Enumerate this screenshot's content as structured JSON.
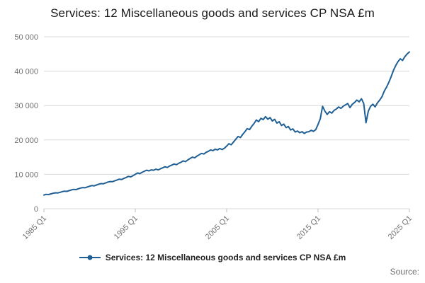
{
  "header": {
    "title": "Services: 12 Miscellaneous goods and services CP NSA £m"
  },
  "footer": {
    "source_label": "Source:"
  },
  "colors": {
    "line": "#206095",
    "grid": "#d9d9d9",
    "axis_text": "#707071",
    "tick": "#bbbbbb",
    "title_text": "#1a1a1a"
  },
  "chart_data": {
    "type": "line",
    "title": "Services: 12 Miscellaneous goods and services CP NSA £m",
    "xlabel": "",
    "ylabel": "",
    "x_unit": "quarter",
    "x_range": [
      "1985 Q1",
      "2025 Q1"
    ],
    "x_tick_labels": [
      "1985 Q1",
      "1995 Q1",
      "2005 Q1",
      "2015 Q1",
      "2025 Q1"
    ],
    "x_tick_indices": [
      0,
      40,
      80,
      120,
      160
    ],
    "y_ticks": [
      0,
      10000,
      20000,
      30000,
      40000,
      50000
    ],
    "y_tick_labels": [
      "0",
      "10 000",
      "20 000",
      "30 000",
      "40 000",
      "50 000"
    ],
    "ylim": [
      0,
      50000
    ],
    "grid": "horizontal",
    "legend_position": "bottom",
    "series": [
      {
        "name": "Services: 12 Miscellaneous goods and services CP NSA £m",
        "color": "#206095",
        "values": [
          4000,
          4180,
          4120,
          4300,
          4480,
          4620,
          4560,
          4750,
          4950,
          5100,
          5050,
          5250,
          5450,
          5620,
          5560,
          5780,
          6000,
          6150,
          6100,
          6320,
          6550,
          6720,
          6650,
          6900,
          7150,
          7300,
          7250,
          7500,
          7750,
          7900,
          7850,
          8100,
          8350,
          8600,
          8500,
          8800,
          9100,
          9400,
          9250,
          9600,
          10000,
          10400,
          10200,
          10600,
          10900,
          11200,
          11000,
          11300,
          11200,
          11500,
          11300,
          11600,
          11900,
          12200,
          12000,
          12400,
          12700,
          13000,
          12800,
          13200,
          13500,
          13900,
          13700,
          14200,
          14600,
          15000,
          14800,
          15300,
          15700,
          16100,
          15900,
          16400,
          16700,
          17100,
          16900,
          17300,
          17100,
          17500,
          17200,
          17600,
          18200,
          18900,
          18600,
          19400,
          20200,
          21000,
          20700,
          21600,
          22400,
          23300,
          23000,
          24000,
          24800,
          25800,
          25300,
          26300,
          25900,
          26800,
          26000,
          26500,
          25500,
          26000,
          24900,
          25300,
          24200,
          24600,
          23600,
          23900,
          22900,
          23200,
          22300,
          22600,
          22100,
          22400,
          21900,
          22300,
          22400,
          22800,
          22500,
          23000,
          24500,
          26200,
          29800,
          28400,
          27400,
          28200,
          27800,
          28600,
          29000,
          29600,
          29200,
          29800,
          30200,
          30600,
          29400,
          30400,
          30900,
          31600,
          31100,
          32000,
          30600,
          25000,
          28400,
          29800,
          30400,
          29600,
          30800,
          31600,
          32600,
          34200,
          35400,
          36800,
          38400,
          40200,
          41600,
          42800,
          43600,
          43100,
          44200,
          45000,
          45600
        ]
      }
    ]
  }
}
